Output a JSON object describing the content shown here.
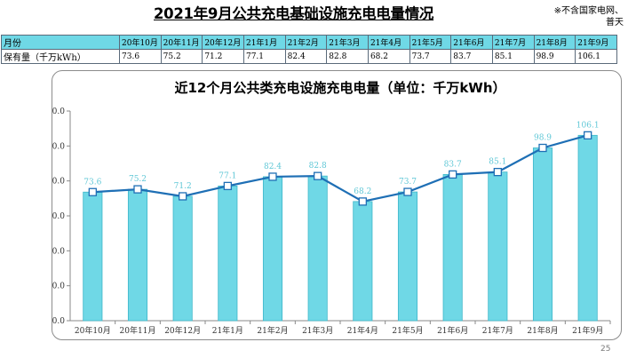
{
  "header": {
    "title": "2021年9月公共充电基础设施充电电量情况",
    "note_line1": "※不含国家电网、",
    "note_line2": "普天"
  },
  "table": {
    "header_label": "月份",
    "row_label": "保有量（千万kWh）",
    "months": [
      "20年10月",
      "20年11月",
      "20年12月",
      "21年1月",
      "21年2月",
      "21年3月",
      "21年4月",
      "21年5月",
      "21年6月",
      "21年7月",
      "21年8月",
      "21年9月"
    ],
    "values": [
      "73.6",
      "75.2",
      "71.2",
      "77.1",
      "82.4",
      "82.8",
      "68.2",
      "73.7",
      "83.7",
      "85.1",
      "98.9",
      "106.1"
    ]
  },
  "chart_data": {
    "type": "bar",
    "title": "近12个月公共类充电设施充电电量（单位：千万kWh）",
    "categories": [
      "20年10月",
      "20年11月",
      "20年12月",
      "21年1月",
      "21年2月",
      "21年3月",
      "21年4月",
      "21年5月",
      "21年6月",
      "21年7月",
      "21年8月",
      "21年9月"
    ],
    "series": [
      {
        "type": "bar",
        "values": [
          73.6,
          75.2,
          71.2,
          77.1,
          82.4,
          82.8,
          68.2,
          73.7,
          83.7,
          85.1,
          98.9,
          106.1
        ]
      },
      {
        "type": "line",
        "values": [
          73.6,
          75.2,
          71.2,
          77.1,
          82.4,
          82.8,
          68.2,
          73.7,
          83.7,
          85.1,
          98.9,
          106.1
        ]
      }
    ],
    "data_labels": [
      "73.6",
      "75.2",
      "71.2",
      "77.1",
      "82.4",
      "82.8",
      "68.2",
      "73.7",
      "83.7",
      "85.1",
      "98.9",
      "106.1"
    ],
    "y_ticks": [
      "0.0",
      "20.0",
      "40.0",
      "60.0",
      "80.0",
      "100.0",
      "120.0"
    ],
    "ylim": [
      0,
      120
    ],
    "grid": false,
    "legend": "none",
    "colors": {
      "bar": "#6fd8e6",
      "bar_edge": "#3fb7c9",
      "line": "#1e6fb5",
      "marker_fill": "#ffffff",
      "label": "#5fc7d6"
    }
  },
  "footer": {
    "page_number": "25"
  }
}
